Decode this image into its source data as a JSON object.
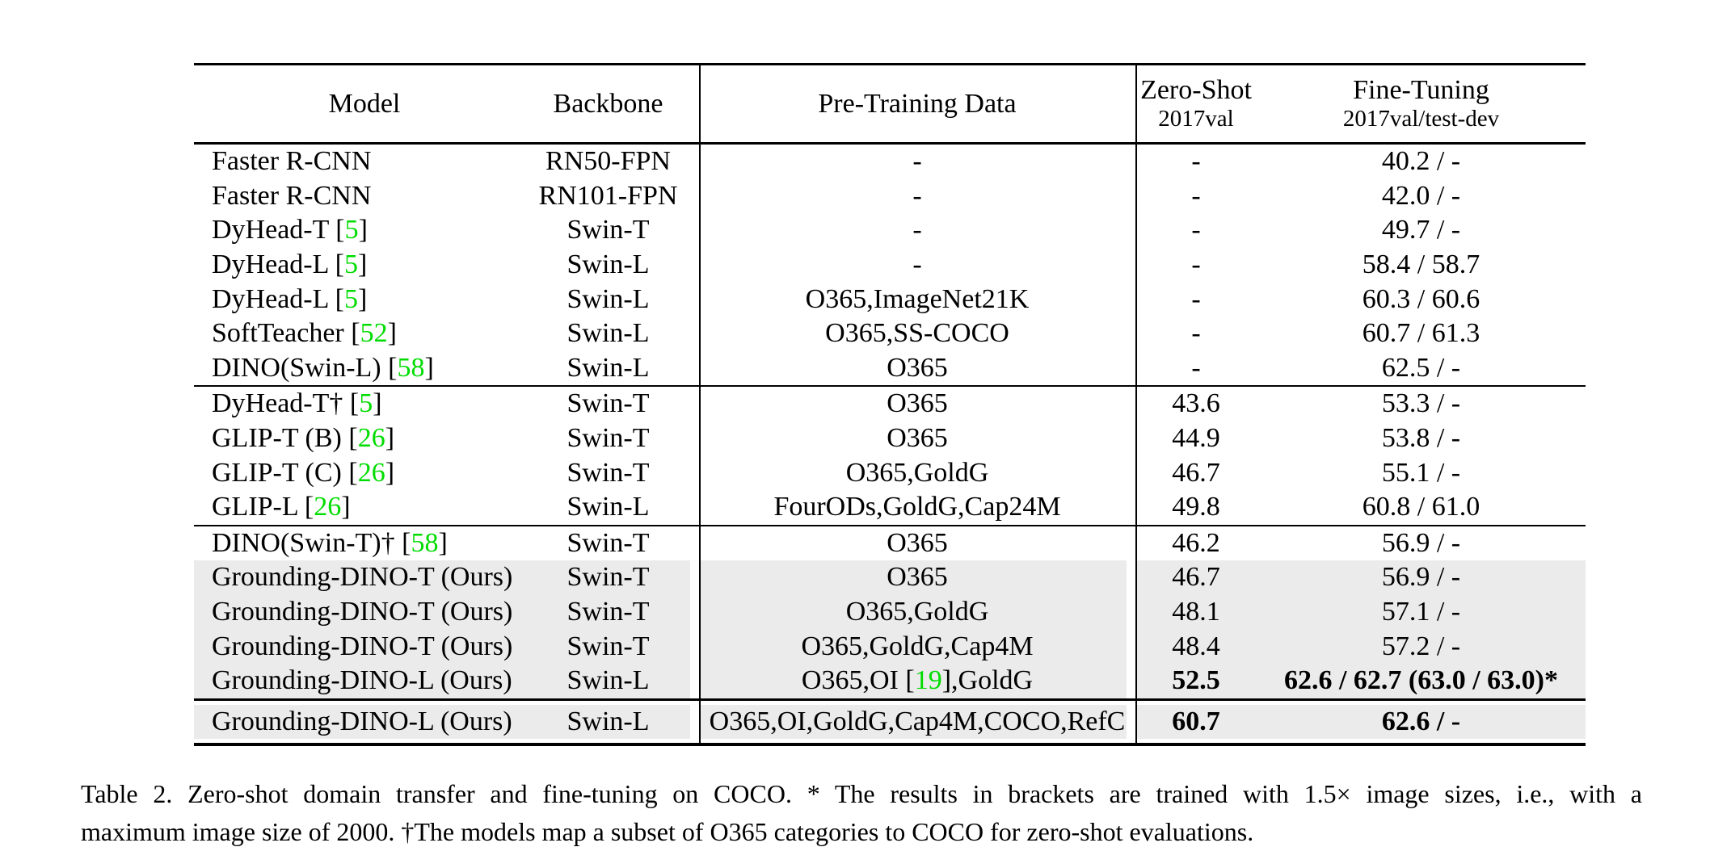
{
  "colors": {
    "citation_green": "#00DC00",
    "row_highlight": "#EBEBEB",
    "text": "#000000"
  },
  "table": {
    "header": {
      "model": "Model",
      "backbone": "Backbone",
      "pretraining": "Pre-Training Data",
      "zeroshot_title": "Zero-Shot",
      "zeroshot_sub": "2017val",
      "finetuning_title": "Fine-Tuning",
      "finetuning_sub": "2017val/test-dev"
    },
    "sections": [
      {
        "rows": [
          {
            "model": "Faster R-CNN",
            "backbone": "RN50-FPN",
            "pretraining": "-",
            "zeroshot": "-",
            "finetuning": "40.2 / -",
            "highlight": false,
            "bold": false
          },
          {
            "model": "Faster R-CNN",
            "backbone": "RN101-FPN",
            "pretraining": "-",
            "zeroshot": "-",
            "finetuning": "42.0 / -",
            "highlight": false,
            "bold": false
          },
          {
            "model": "DyHead-T [5]",
            "backbone": "Swin-T",
            "pretraining": "-",
            "zeroshot": "-",
            "finetuning": "49.7 / -",
            "highlight": false,
            "bold": false
          },
          {
            "model": "DyHead-L [5]",
            "backbone": "Swin-L",
            "pretraining": "-",
            "zeroshot": "-",
            "finetuning": "58.4 / 58.7",
            "highlight": false,
            "bold": false
          },
          {
            "model": "DyHead-L [5]",
            "backbone": "Swin-L",
            "pretraining": "O365,ImageNet21K",
            "zeroshot": "-",
            "finetuning": "60.3 / 60.6",
            "highlight": false,
            "bold": false
          },
          {
            "model": "SoftTeacher [52]",
            "backbone": "Swin-L",
            "pretraining": "O365,SS-COCO",
            "zeroshot": "-",
            "finetuning": "60.7 / 61.3",
            "highlight": false,
            "bold": false
          },
          {
            "model": "DINO(Swin-L) [58]",
            "backbone": "Swin-L",
            "pretraining": "O365",
            "zeroshot": "-",
            "finetuning": "62.5 / -",
            "highlight": false,
            "bold": false
          }
        ]
      },
      {
        "rows": [
          {
            "model": "DyHead-T† [5]",
            "backbone": "Swin-T",
            "pretraining": "O365",
            "zeroshot": "43.6",
            "finetuning": "53.3 / -",
            "highlight": false,
            "bold": false
          },
          {
            "model": "GLIP-T (B) [26]",
            "backbone": "Swin-T",
            "pretraining": "O365",
            "zeroshot": "44.9",
            "finetuning": "53.8 / -",
            "highlight": false,
            "bold": false
          },
          {
            "model": "GLIP-T (C) [26]",
            "backbone": "Swin-T",
            "pretraining": "O365,GoldG",
            "zeroshot": "46.7",
            "finetuning": "55.1 / -",
            "highlight": false,
            "bold": false
          },
          {
            "model": "GLIP-L [26]",
            "backbone": "Swin-L",
            "pretraining": "FourODs,GoldG,Cap24M",
            "zeroshot": "49.8",
            "finetuning": "60.8 / 61.0",
            "highlight": false,
            "bold": false
          }
        ]
      },
      {
        "rows": [
          {
            "model": "DINO(Swin-T)† [58]",
            "backbone": "Swin-T",
            "pretraining": "O365",
            "zeroshot": "46.2",
            "finetuning": "56.9 / -",
            "highlight": false,
            "bold": false
          },
          {
            "model": "Grounding-DINO-T (Ours)",
            "backbone": "Swin-T",
            "pretraining": "O365",
            "zeroshot": "46.7",
            "finetuning": "56.9 / -",
            "highlight": true,
            "bold": false
          },
          {
            "model": "Grounding-DINO-T (Ours)",
            "backbone": "Swin-T",
            "pretraining": "O365,GoldG",
            "zeroshot": "48.1",
            "finetuning": "57.1 / -",
            "highlight": true,
            "bold": false
          },
          {
            "model": "Grounding-DINO-T (Ours)",
            "backbone": "Swin-T",
            "pretraining": "O365,GoldG,Cap4M",
            "zeroshot": "48.4",
            "finetuning": "57.2 / -",
            "highlight": true,
            "bold": false
          },
          {
            "model": "Grounding-DINO-L (Ours)",
            "backbone": "Swin-L",
            "pretraining": "O365,OI [19],GoldG",
            "zeroshot": "52.5",
            "finetuning": "62.6 / 62.7 (63.0 / 63.0)*",
            "highlight": true,
            "bold": true
          }
        ]
      },
      {
        "rows": [
          {
            "model": "Grounding-DINO-L (Ours)",
            "backbone": "Swin-L",
            "pretraining": "O365,OI,GoldG,Cap4M,COCO,RefC",
            "zeroshot": "60.7",
            "finetuning": "62.6 / -",
            "highlight": true,
            "bold": true
          }
        ]
      }
    ]
  },
  "caption": {
    "line1": "Table 2.  Zero-shot domain transfer and fine-tuning on COCO. * The results in brackets are trained with 1.5× image sizes, i.e., with a",
    "line2": "maximum image size of 2000. †The models map a subset of O365 categories to COCO for zero-shot evaluations."
  }
}
